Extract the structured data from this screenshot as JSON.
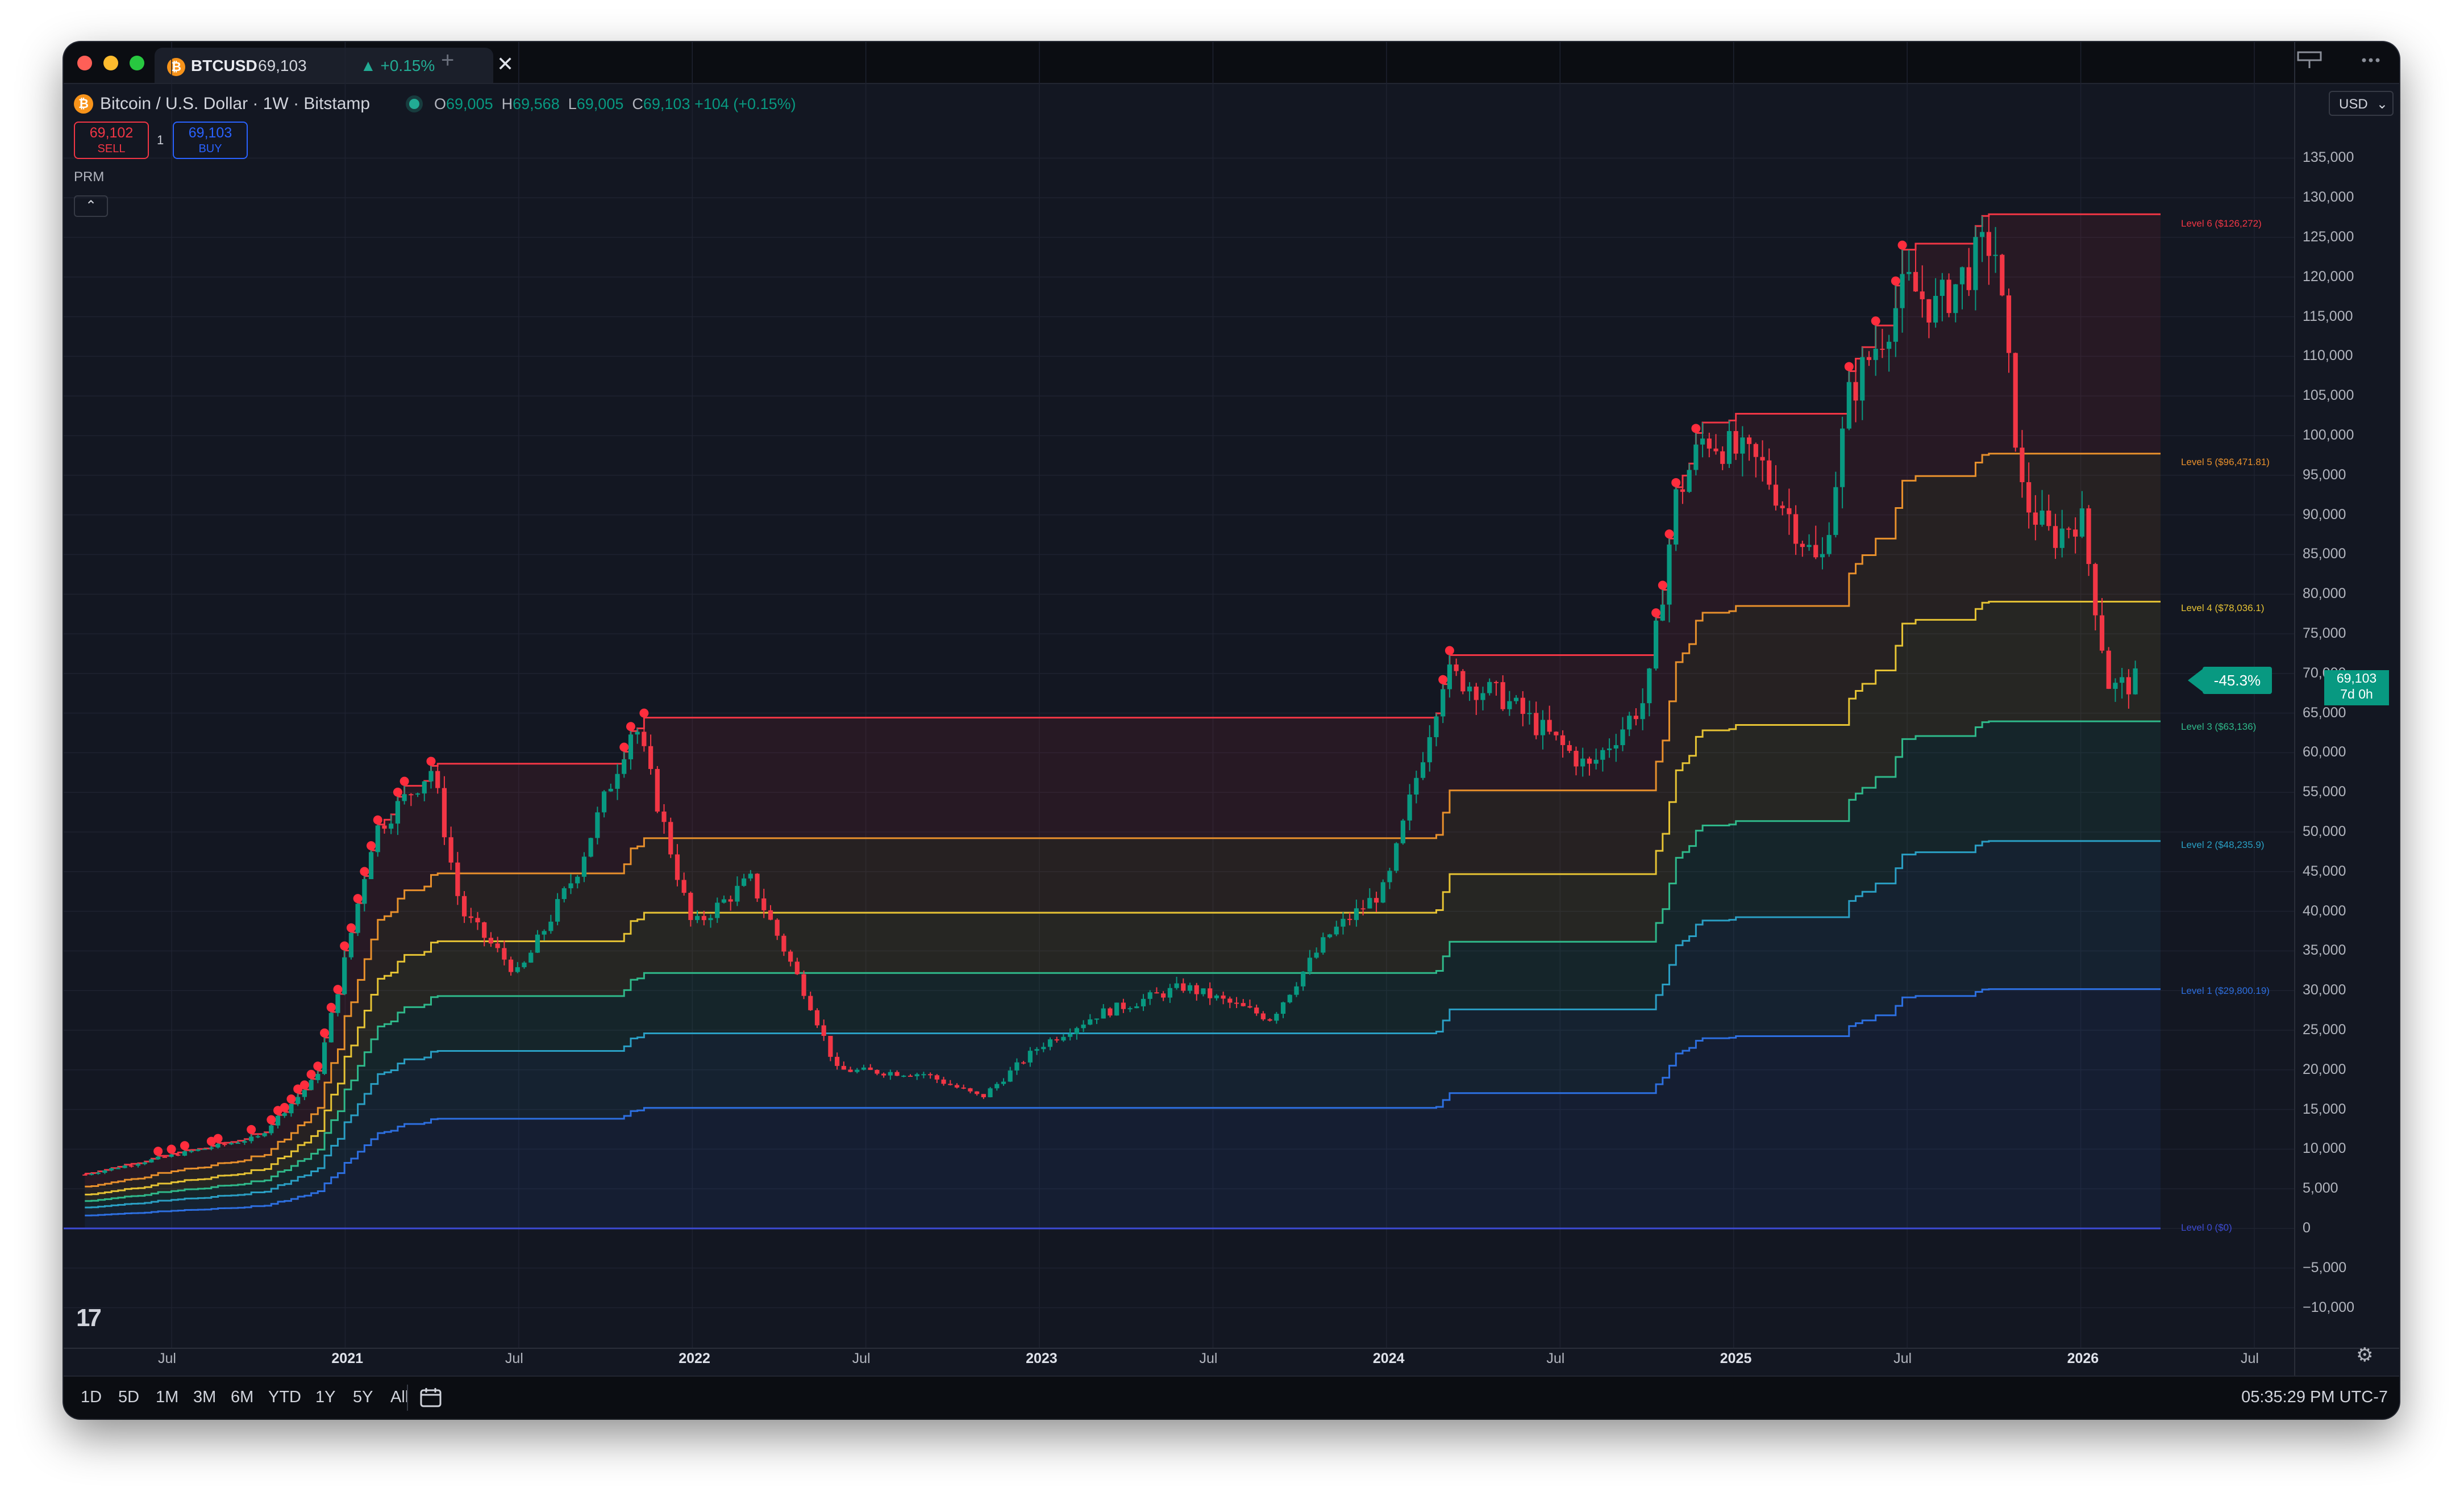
{
  "window": {
    "tab": {
      "symbol": "BTCUSD",
      "price": "69,103",
      "change": "▲ +0.15%",
      "logo": "₿"
    },
    "new_tab": "+",
    "close": "✕",
    "icons": {
      "tables": "table-icon",
      "more": "more-icon"
    }
  },
  "header": {
    "title": "Bitcoin / U.S. Dollar · 1W · Bitstamp",
    "open_key": "O",
    "open": "69,005",
    "high_key": "H",
    "high": "69,568",
    "low_key": "L",
    "low": "69,005",
    "close_key": "C",
    "close": "69,103",
    "change": "+104 (+0.15%)",
    "currency": "USD"
  },
  "trade": {
    "sell_price": "69,102",
    "sell_label": "SELL",
    "qty": "1",
    "buy_price": "69,103",
    "buy_label": "BUY"
  },
  "indicator": {
    "name": "PRM",
    "collapse": "⌃"
  },
  "badges": {
    "current_price": "69,103",
    "countdown": "7d 0h",
    "drawdown": "-45.3%"
  },
  "y_axis": [
    "135,000",
    "130,000",
    "125,000",
    "120,000",
    "115,000",
    "110,000",
    "105,000",
    "100,000",
    "95,000",
    "90,000",
    "85,000",
    "80,000",
    "75,000",
    "70,000",
    "65,000",
    "60,000",
    "55,000",
    "50,000",
    "45,000",
    "40,000",
    "35,000",
    "30,000",
    "25,000",
    "20,000",
    "15,000",
    "10,000",
    "5,000",
    "0",
    "−5,000",
    "−10,000"
  ],
  "x_axis": [
    {
      "label": "Jul",
      "bold": false
    },
    {
      "label": "2021",
      "bold": true
    },
    {
      "label": "Jul",
      "bold": false
    },
    {
      "label": "2022",
      "bold": true
    },
    {
      "label": "Jul",
      "bold": false
    },
    {
      "label": "2023",
      "bold": true
    },
    {
      "label": "Jul",
      "bold": false
    },
    {
      "label": "2024",
      "bold": true
    },
    {
      "label": "Jul",
      "bold": false
    },
    {
      "label": "2025",
      "bold": true
    },
    {
      "label": "Jul",
      "bold": false
    },
    {
      "label": "2026",
      "bold": true
    },
    {
      "label": "Jul",
      "bold": false
    }
  ],
  "levels": [
    {
      "label": "Level 6  ($126,272)",
      "color": "#f23645"
    },
    {
      "label": "Level 5  ($96,471.81)",
      "color": "#e8902c"
    },
    {
      "label": "Level 4  ($78,036.1)",
      "color": "#e6c334"
    },
    {
      "label": "Level 3  ($63,136)",
      "color": "#2fb98a"
    },
    {
      "label": "Level 2  ($48,235.9)",
      "color": "#2a9fc4"
    },
    {
      "label": "Level 1  ($29,800.19)",
      "color": "#2d6fe0"
    },
    {
      "label": "Level 0  ($0)",
      "color": "#3d4bd4"
    }
  ],
  "chart_data": {
    "type": "candlestick",
    "title": "Bitcoin / U.S. Dollar · 1W · Bitstamp",
    "x_range": [
      "2020-04",
      "2026-07"
    ],
    "ylim": [
      -10000,
      135000
    ],
    "log_scale": false,
    "grid": true,
    "price_path": [
      [
        "2020-04",
        6800
      ],
      [
        "2020-07",
        9200
      ],
      [
        "2020-10",
        11500
      ],
      [
        "2020-12",
        19000
      ],
      [
        "2021-01",
        34000
      ],
      [
        "2021-02",
        50000
      ],
      [
        "2021-04",
        58000
      ],
      [
        "2021-05",
        40000
      ],
      [
        "2021-07",
        32000
      ],
      [
        "2021-09",
        45000
      ],
      [
        "2021-11",
        64000
      ],
      [
        "2022-01",
        38000
      ],
      [
        "2022-03",
        44000
      ],
      [
        "2022-05",
        29000
      ],
      [
        "2022-06",
        20000
      ],
      [
        "2022-09",
        19500
      ],
      [
        "2022-11",
        16500
      ],
      [
        "2023-01",
        23000
      ],
      [
        "2023-03",
        27000
      ],
      [
        "2023-06",
        30500
      ],
      [
        "2023-09",
        26500
      ],
      [
        "2023-11",
        37000
      ],
      [
        "2024-01",
        43000
      ],
      [
        "2024-03",
        70000
      ],
      [
        "2024-05",
        67000
      ],
      [
        "2024-08",
        58000
      ],
      [
        "2024-10",
        67000
      ],
      [
        "2024-11",
        92000
      ],
      [
        "2024-12",
        100000
      ],
      [
        "2025-02",
        96000
      ],
      [
        "2025-04",
        83000
      ],
      [
        "2025-05",
        105000
      ],
      [
        "2025-07",
        119000
      ],
      [
        "2025-08",
        116000
      ],
      [
        "2025-10",
        125000
      ],
      [
        "2025-11",
        92000
      ],
      [
        "2025-12",
        87000
      ],
      [
        "2026-01",
        90000
      ],
      [
        "2026-02",
        68000
      ],
      [
        "2026-03",
        69103
      ]
    ],
    "levels": [
      {
        "name": "Level 6",
        "value": 126272
      },
      {
        "name": "Level 5",
        "value": 96471.81
      },
      {
        "name": "Level 4",
        "value": 78036.1
      },
      {
        "name": "Level 3",
        "value": 63136
      },
      {
        "name": "Level 2",
        "value": 48235.9
      },
      {
        "name": "Level 1",
        "value": 29800.19
      },
      {
        "name": "Level 0",
        "value": 0
      }
    ],
    "last_close": 69103,
    "drawdown_pct": -45.3
  },
  "bottom": {
    "ranges": [
      "1D",
      "5D",
      "1M",
      "3M",
      "6M",
      "YTD",
      "1Y",
      "5Y",
      "All"
    ],
    "clock": "05:35:29 PM UTC-7"
  }
}
